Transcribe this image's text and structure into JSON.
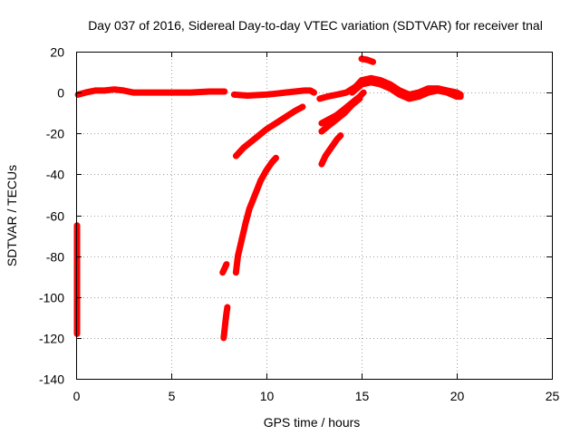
{
  "chart_data": {
    "type": "scatter",
    "title": "Day 037 of 2016, Sidereal Day-to-day VTEC variation (SDTVAR) for receiver tnal",
    "xlabel": "GPS time / hours",
    "ylabel": "SDTVAR / TECUs",
    "xlim": [
      0,
      25
    ],
    "ylim": [
      -140,
      20
    ],
    "xticks": [
      0,
      5,
      10,
      15,
      20,
      25
    ],
    "yticks": [
      -140,
      -120,
      -100,
      -80,
      -60,
      -40,
      -20,
      0,
      20
    ],
    "grid": true,
    "legend": "none",
    "color": "#ff0000",
    "series": [
      {
        "points": [
          [
            0.1,
            -1
          ],
          [
            0.5,
            0
          ],
          [
            1.0,
            1
          ],
          [
            1.5,
            1
          ],
          [
            2.0,
            1.5
          ],
          [
            2.5,
            1
          ],
          [
            3.0,
            0
          ],
          [
            4.0,
            0
          ],
          [
            5.0,
            0
          ],
          [
            6.0,
            0
          ],
          [
            7.0,
            0.5
          ],
          [
            7.5,
            0.5
          ],
          [
            7.8,
            0.5
          ]
        ]
      },
      {
        "points": [
          [
            8.3,
            -1
          ],
          [
            9.0,
            -1.5
          ],
          [
            10.0,
            -1
          ],
          [
            10.5,
            -0.5
          ],
          [
            11.0,
            0
          ],
          [
            11.5,
            0.5
          ],
          [
            12.0,
            1
          ],
          [
            12.3,
            1
          ],
          [
            12.5,
            0
          ]
        ]
      },
      {
        "points": [
          [
            8.4,
            -31
          ],
          [
            8.8,
            -27
          ],
          [
            9.2,
            -24
          ],
          [
            9.6,
            -21
          ],
          [
            10.0,
            -18
          ],
          [
            10.5,
            -15
          ],
          [
            11.0,
            -12
          ],
          [
            11.5,
            -9
          ],
          [
            11.9,
            -7
          ]
        ]
      },
      {
        "points": [
          [
            8.4,
            -88
          ],
          [
            8.5,
            -80
          ],
          [
            8.7,
            -72
          ],
          [
            8.9,
            -64
          ],
          [
            9.1,
            -57
          ],
          [
            9.4,
            -50
          ],
          [
            9.7,
            -43
          ],
          [
            10.0,
            -38
          ],
          [
            10.3,
            -34
          ],
          [
            10.5,
            -32
          ]
        ]
      },
      {
        "points": [
          [
            7.7,
            -88
          ],
          [
            7.8,
            -86
          ],
          [
            7.9,
            -84
          ]
        ]
      },
      {
        "points": [
          [
            7.75,
            -120
          ],
          [
            7.8,
            -116
          ],
          [
            7.85,
            -112
          ],
          [
            7.9,
            -108
          ],
          [
            7.95,
            -105
          ]
        ]
      },
      {
        "points": [
          [
            12.8,
            -3
          ],
          [
            13.2,
            -2
          ],
          [
            13.7,
            -1
          ],
          [
            14.2,
            0
          ],
          [
            14.7,
            3
          ],
          [
            15.0,
            6
          ],
          [
            15.5,
            7
          ],
          [
            16.0,
            6
          ],
          [
            16.5,
            4
          ],
          [
            17.0,
            1
          ],
          [
            17.5,
            -1
          ],
          [
            18.0,
            0
          ],
          [
            18.5,
            2
          ],
          [
            19.0,
            2
          ],
          [
            19.5,
            1
          ],
          [
            20.0,
            0
          ],
          [
            20.2,
            -1
          ]
        ]
      },
      {
        "points": [
          [
            14.5,
            0
          ],
          [
            15.0,
            4
          ],
          [
            15.5,
            5
          ],
          [
            16.0,
            4
          ],
          [
            16.5,
            2
          ],
          [
            17.0,
            -1
          ],
          [
            17.5,
            -3
          ],
          [
            18.0,
            -2
          ],
          [
            18.5,
            0
          ],
          [
            19.0,
            1
          ],
          [
            19.5,
            0
          ],
          [
            20.0,
            -2
          ],
          [
            20.2,
            -2
          ]
        ]
      },
      {
        "points": [
          [
            12.9,
            -15
          ],
          [
            13.3,
            -13
          ],
          [
            13.7,
            -11
          ],
          [
            14.1,
            -8
          ],
          [
            14.5,
            -5
          ],
          [
            14.9,
            -2
          ],
          [
            15.1,
            0
          ]
        ]
      },
      {
        "points": [
          [
            12.9,
            -19
          ],
          [
            13.3,
            -16
          ],
          [
            13.7,
            -13
          ],
          [
            14.1,
            -10
          ],
          [
            14.5,
            -6
          ],
          [
            14.9,
            -3
          ]
        ]
      },
      {
        "points": [
          [
            12.9,
            -35
          ],
          [
            13.1,
            -31
          ],
          [
            13.4,
            -27
          ],
          [
            13.7,
            -23
          ],
          [
            13.9,
            -21
          ]
        ]
      },
      {
        "points": [
          [
            15.0,
            16.5
          ],
          [
            15.3,
            16
          ],
          [
            15.6,
            15
          ]
        ]
      },
      {
        "points": [
          [
            0.05,
            -65
          ],
          [
            0.05,
            -76
          ],
          [
            0.05,
            -95
          ],
          [
            0.05,
            -116
          ],
          [
            0.05,
            -118
          ]
        ]
      }
    ]
  }
}
